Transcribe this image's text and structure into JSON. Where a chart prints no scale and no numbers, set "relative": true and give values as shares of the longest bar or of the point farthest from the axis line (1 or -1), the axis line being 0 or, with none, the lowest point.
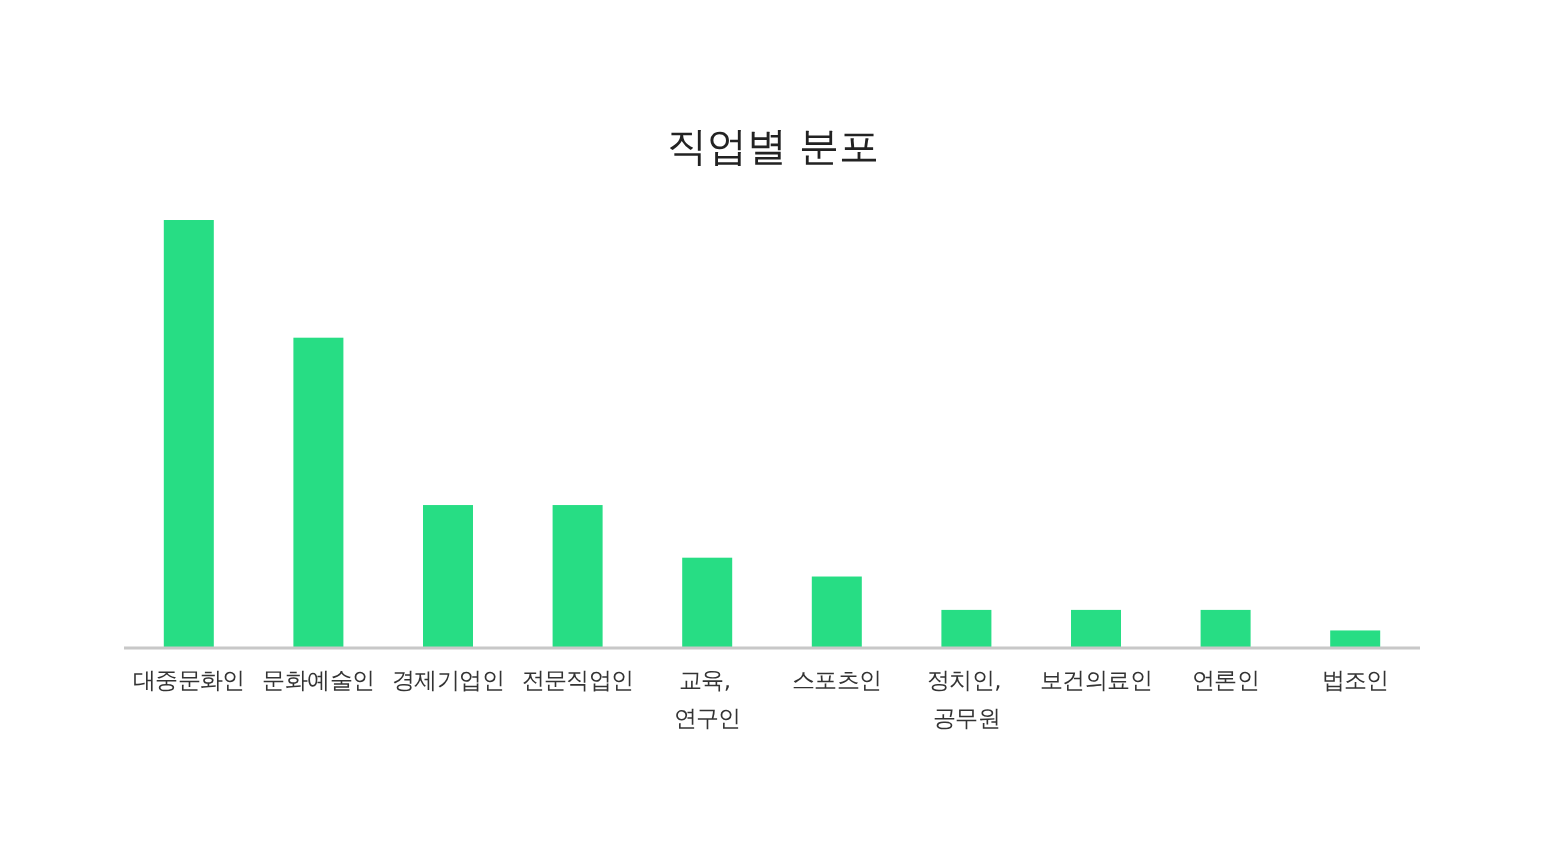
{
  "chart_data": {
    "type": "bar",
    "title": "직업별 분포",
    "relative": true,
    "categories": [
      "대중문화인",
      "문화예술인",
      "경제기업인",
      "전문직업인",
      "교육, 연구인",
      "스포츠인",
      "정치인, 공무원",
      "보건의료인",
      "언론인",
      "법조인"
    ],
    "values": [
      1,
      0.725,
      0.334,
      0.334,
      0.211,
      0.167,
      0.089,
      0.089,
      0.089,
      0.041
    ],
    "color": "#27dd84"
  }
}
